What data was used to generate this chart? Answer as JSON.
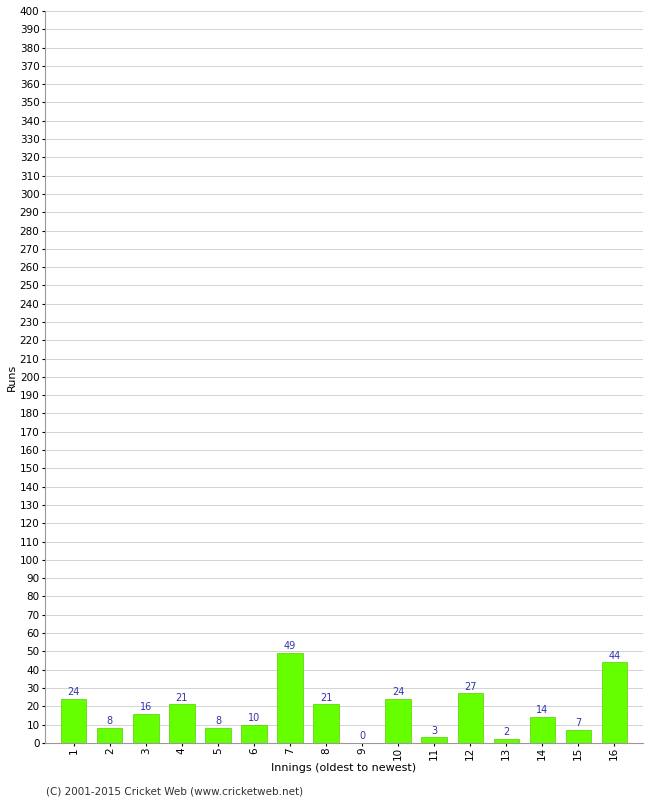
{
  "innings": [
    1,
    2,
    3,
    4,
    5,
    6,
    7,
    8,
    9,
    10,
    11,
    12,
    13,
    14,
    15,
    16
  ],
  "runs": [
    24,
    8,
    16,
    21,
    8,
    10,
    49,
    21,
    0,
    24,
    3,
    27,
    2,
    14,
    7,
    44
  ],
  "bar_color": "#66ff00",
  "bar_edge_color": "#55cc00",
  "label_color": "#3333aa",
  "xlabel": "Innings (oldest to newest)",
  "ylabel": "Runs",
  "ylim_min": 0,
  "ylim_max": 400,
  "ytick_step": 10,
  "footer": "(C) 2001-2015 Cricket Web (www.cricketweb.net)",
  "background_color": "#ffffff",
  "plot_bg_color": "#ffffff",
  "grid_color": "#cccccc",
  "label_fontsize": 7,
  "axis_label_fontsize": 8,
  "tick_fontsize": 7.5,
  "footer_fontsize": 7.5
}
